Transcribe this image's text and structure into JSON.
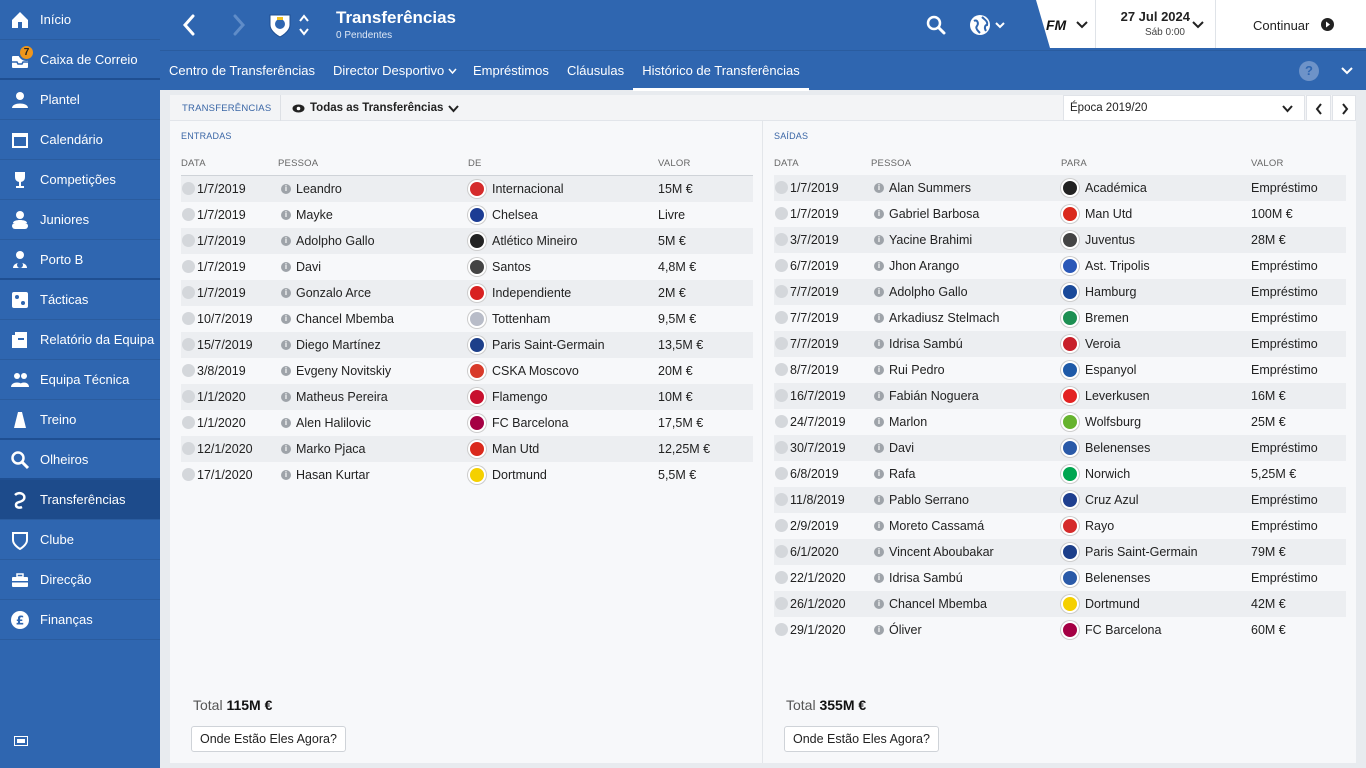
{
  "sidebar": {
    "items": [
      {
        "label": "Início",
        "icon": "home-icon"
      },
      {
        "label": "Caixa de Correio",
        "icon": "inbox-icon",
        "badge": "7"
      },
      {
        "label": "Plantel",
        "icon": "squad-icon"
      },
      {
        "label": "Calendário",
        "icon": "calendar-icon"
      },
      {
        "label": "Competições",
        "icon": "trophy-icon"
      },
      {
        "label": "Juniores",
        "icon": "youth-icon"
      },
      {
        "label": "Porto B",
        "icon": "reserve-team-icon"
      },
      {
        "label": "Tácticas",
        "icon": "tactics-icon"
      },
      {
        "label": "Relatório da Equipa",
        "icon": "team-report-icon"
      },
      {
        "label": "Equipa Técnica",
        "icon": "staff-icon"
      },
      {
        "label": "Treino",
        "icon": "training-icon"
      },
      {
        "label": "Olheiros",
        "icon": "search-icon"
      },
      {
        "label": "Transferências",
        "icon": "transfers-icon"
      },
      {
        "label": "Clube",
        "icon": "club-icon"
      },
      {
        "label": "Direcção",
        "icon": "board-icon"
      },
      {
        "label": "Finanças",
        "icon": "finances-icon"
      }
    ]
  },
  "header": {
    "title": "Transferências",
    "subtitle": "0 Pendentes",
    "date": "27 Jul 2024",
    "time": "Sáb 0:00",
    "logo": "FM",
    "continue_label": "Continuar"
  },
  "nav": {
    "tabs": [
      "Centro de Transferências",
      "Director Desportivo",
      "Empréstimos",
      "Cláusulas",
      "Histórico de Transferências"
    ],
    "help": "?"
  },
  "filter": {
    "section": "TRANSFERÊNCIAS",
    "view": "Todas as Transferências",
    "season": "Época 2019/20"
  },
  "columns": {
    "date": "DATA",
    "person": "PESSOA",
    "from": "DE",
    "to": "PARA",
    "value": "VALOR"
  },
  "incoming": {
    "title": "ENTRADAS",
    "total_label": "Total",
    "total": "115M €",
    "button": "Onde Estão Eles Agora?",
    "rows": [
      {
        "date": "1/7/2019",
        "person": "Leandro",
        "club": "Internacional",
        "value": "15M €",
        "color": "#d52b2b"
      },
      {
        "date": "1/7/2019",
        "person": "Mayke",
        "club": "Chelsea",
        "value": "Livre",
        "color": "#1c3c94"
      },
      {
        "date": "1/7/2019",
        "person": "Adolpho Gallo",
        "club": "Atlético Mineiro",
        "value": "5M €",
        "color": "#222222"
      },
      {
        "date": "1/7/2019",
        "person": "Davi",
        "club": "Santos",
        "value": "4,8M €",
        "color": "#444444"
      },
      {
        "date": "1/7/2019",
        "person": "Gonzalo Arce",
        "club": "Independiente",
        "value": "2M €",
        "color": "#d82020"
      },
      {
        "date": "10/7/2019",
        "person": "Chancel Mbemba",
        "club": "Tottenham",
        "value": "9,5M €",
        "color": "#b8bcc8"
      },
      {
        "date": "15/7/2019",
        "person": "Diego Martínez",
        "club": "Paris Saint-Germain",
        "value": "13,5M €",
        "color": "#1d3f8a"
      },
      {
        "date": "3/8/2019",
        "person": "Evgeny Novitskiy",
        "club": "CSKA Moscovo",
        "value": "20M €",
        "color": "#d83a2a"
      },
      {
        "date": "1/1/2020",
        "person": "Matheus Pereira",
        "club": "Flamengo",
        "value": "10M €",
        "color": "#c8102e"
      },
      {
        "date": "1/1/2020",
        "person": "Alen Halilovic",
        "club": "FC Barcelona",
        "value": "17,5M €",
        "color": "#a50044"
      },
      {
        "date": "12/1/2020",
        "person": "Marko Pjaca",
        "club": "Man Utd",
        "value": "12,25M €",
        "color": "#da291c"
      },
      {
        "date": "17/1/2020",
        "person": "Hasan Kurtar",
        "club": "Dortmund",
        "value": "5,5M €",
        "color": "#f5d000"
      }
    ]
  },
  "outgoing": {
    "title": "SAÍDAS",
    "total_label": "Total",
    "total": "355M €",
    "button": "Onde Estão Eles Agora?",
    "rows": [
      {
        "date": "1/7/2019",
        "person": "Alan Summers",
        "club": "Académica",
        "value": "Empréstimo",
        "color": "#222222"
      },
      {
        "date": "1/7/2019",
        "person": "Gabriel Barbosa",
        "club": "Man Utd",
        "value": "100M €",
        "color": "#da291c"
      },
      {
        "date": "3/7/2019",
        "person": "Yacine Brahimi",
        "club": "Juventus",
        "value": "28M €",
        "color": "#444444"
      },
      {
        "date": "6/7/2019",
        "person": "Jhon Arango",
        "club": "Ast. Tripolis",
        "value": "Empréstimo",
        "color": "#2a58b8"
      },
      {
        "date": "7/7/2019",
        "person": "Adolpho Gallo",
        "club": "Hamburg",
        "value": "Empréstimo",
        "color": "#1a4a9a"
      },
      {
        "date": "7/7/2019",
        "person": "Arkadiusz Stelmach",
        "club": "Bremen",
        "value": "Empréstimo",
        "color": "#1d9053"
      },
      {
        "date": "7/7/2019",
        "person": "Idrisa Sambú",
        "club": "Veroia",
        "value": "Empréstimo",
        "color": "#c8202a"
      },
      {
        "date": "8/7/2019",
        "person": "Rui Pedro",
        "club": "Espanyol",
        "value": "Empréstimo",
        "color": "#1e5aa8"
      },
      {
        "date": "16/7/2019",
        "person": "Fabián Noguera",
        "club": "Leverkusen",
        "value": "16M €",
        "color": "#e32221"
      },
      {
        "date": "24/7/2019",
        "person": "Marlon",
        "club": "Wolfsburg",
        "value": "25M €",
        "color": "#65b32e"
      },
      {
        "date": "30/7/2019",
        "person": "Davi",
        "club": "Belenenses",
        "value": "Empréstimo",
        "color": "#2a5aa8"
      },
      {
        "date": "6/8/2019",
        "person": "Rafa",
        "club": "Norwich",
        "value": "5,25M €",
        "color": "#00a650"
      },
      {
        "date": "11/8/2019",
        "person": "Pablo Serrano",
        "club": "Cruz Azul",
        "value": "Empréstimo",
        "color": "#1f3f8f"
      },
      {
        "date": "2/9/2019",
        "person": "Moreto Cassamá",
        "club": "Rayo",
        "value": "Empréstimo",
        "color": "#d52b2b"
      },
      {
        "date": "6/1/2020",
        "person": "Vincent Aboubakar",
        "club": "Paris Saint-Germain",
        "value": "79M €",
        "color": "#1d3f8a"
      },
      {
        "date": "22/1/2020",
        "person": "Idrisa Sambú",
        "club": "Belenenses",
        "value": "Empréstimo",
        "color": "#2a5aa8"
      },
      {
        "date": "26/1/2020",
        "person": "Chancel Mbemba",
        "club": "Dortmund",
        "value": "42M €",
        "color": "#f5d000"
      },
      {
        "date": "29/1/2020",
        "person": "Óliver",
        "club": "FC Barcelona",
        "value": "60M €",
        "color": "#a50044"
      }
    ]
  }
}
